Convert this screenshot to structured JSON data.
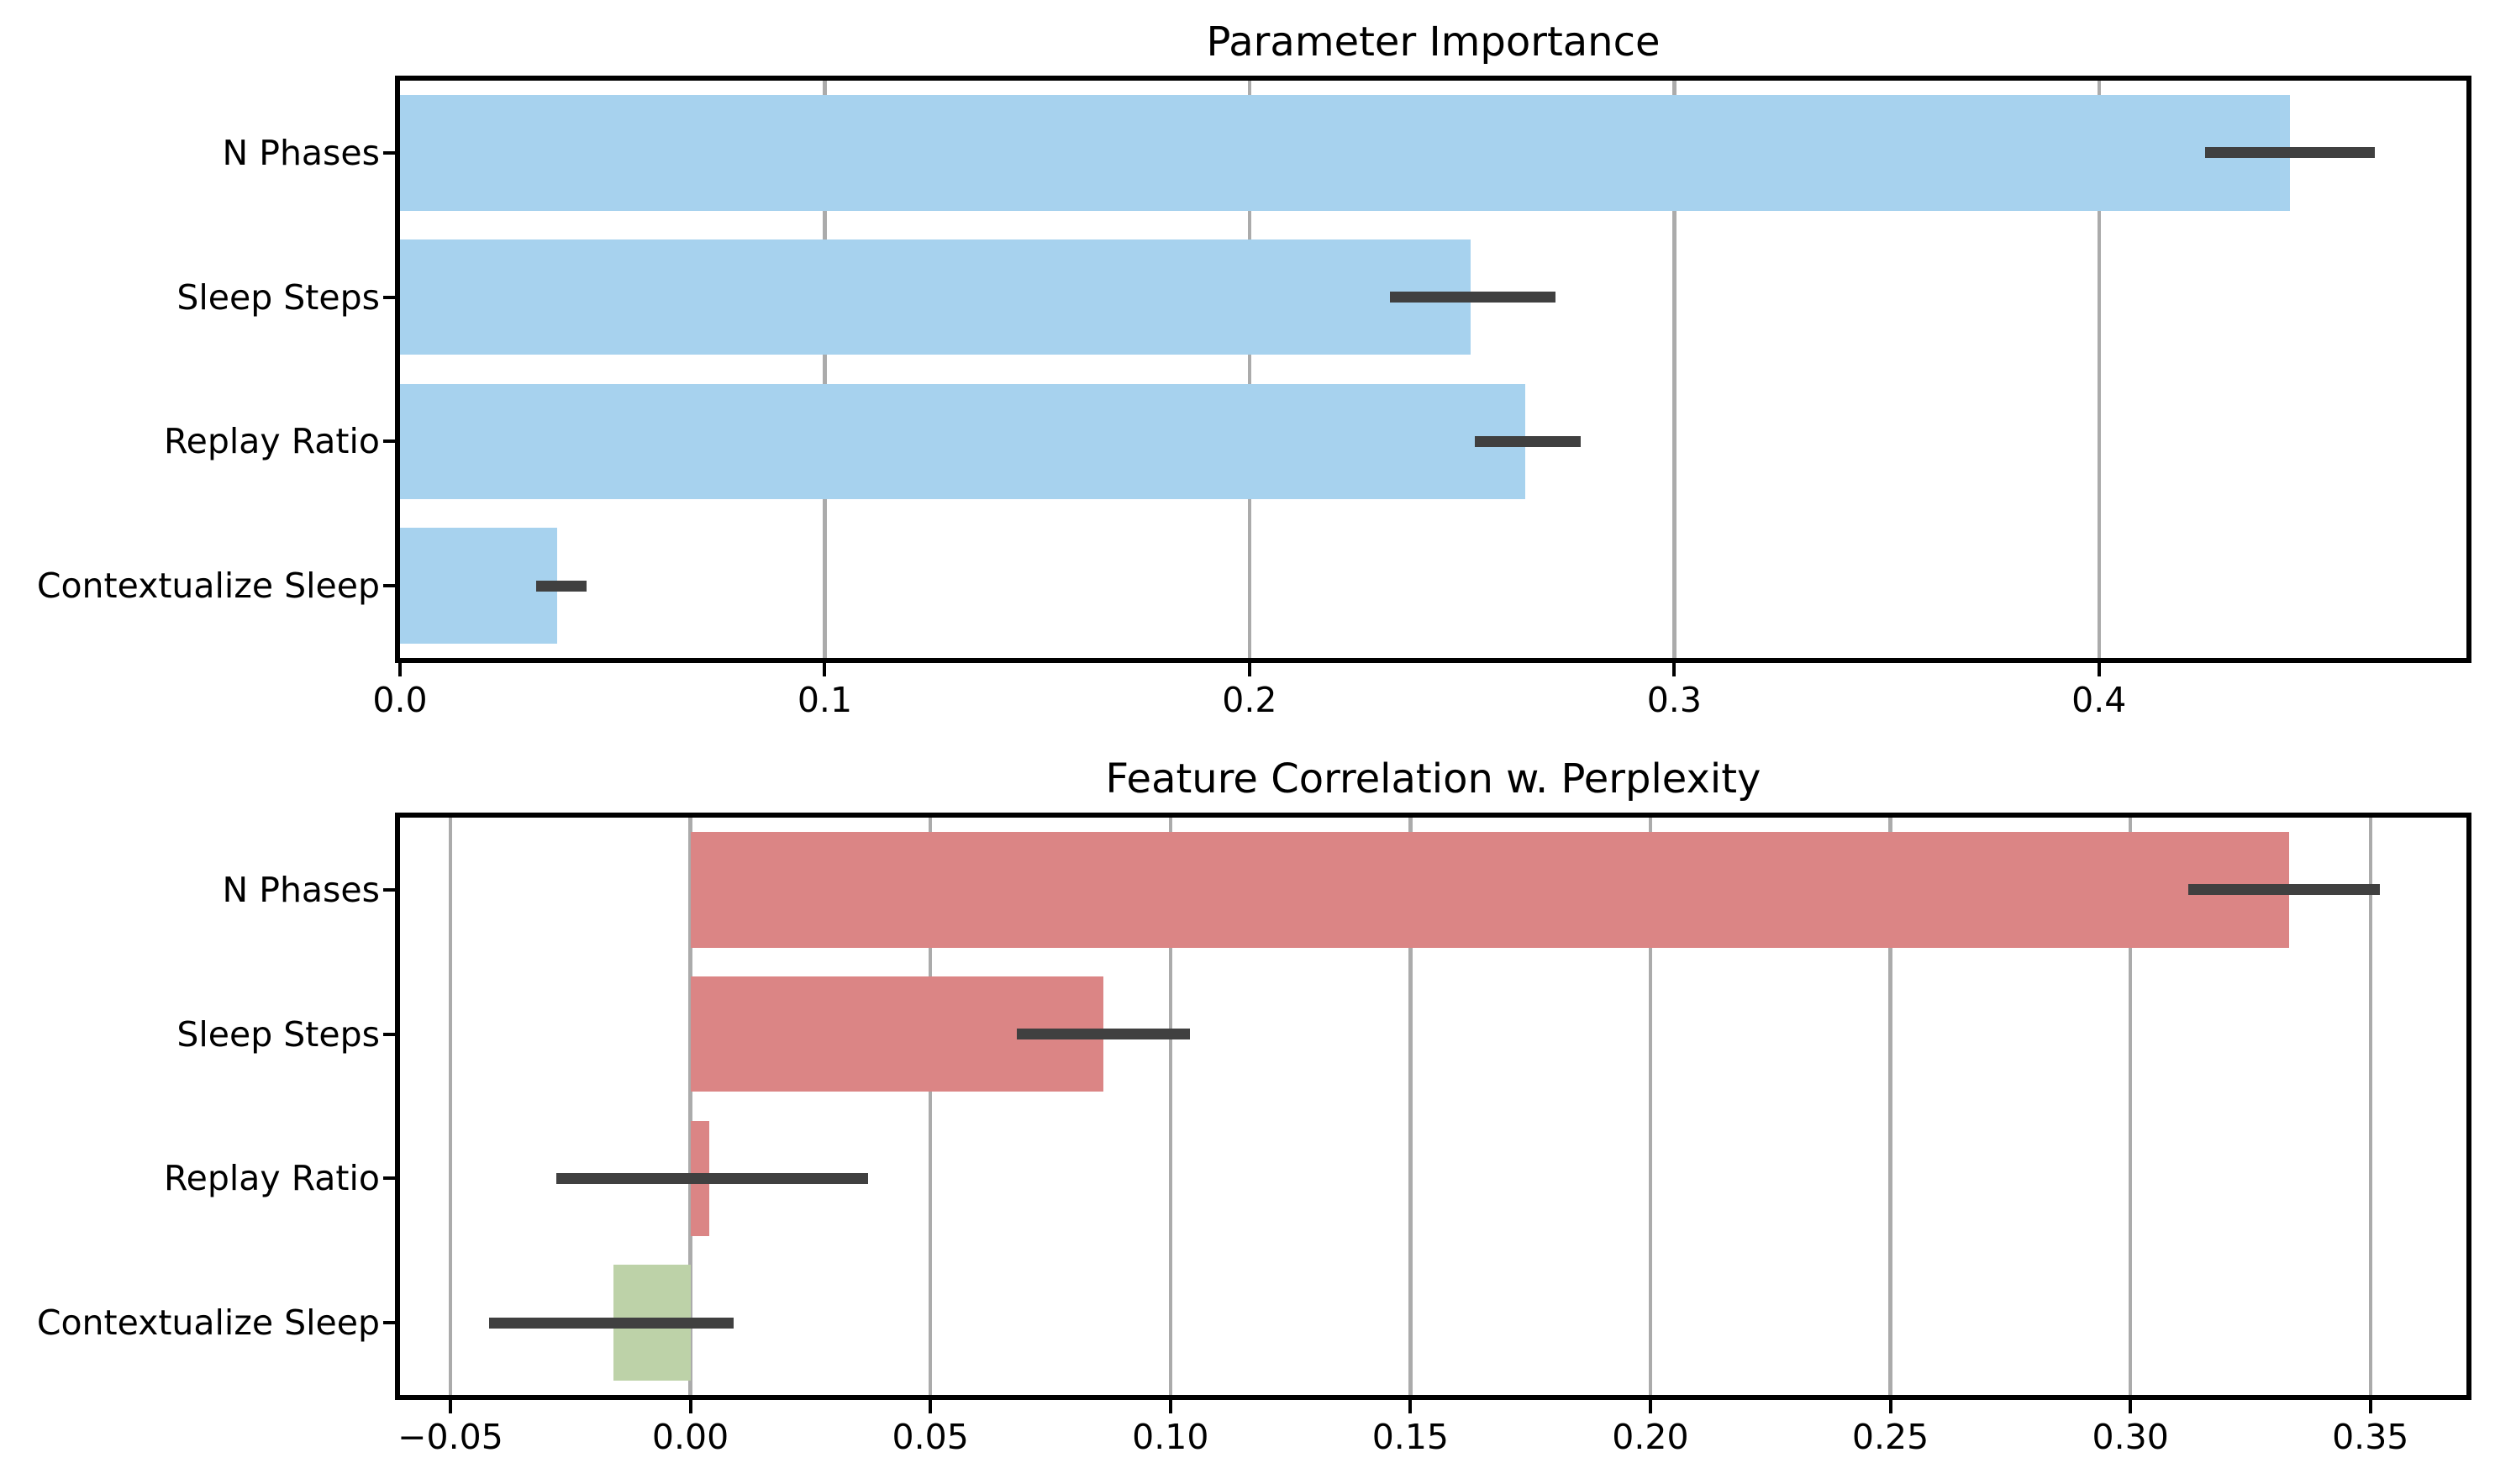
{
  "figure": {
    "background": "#ffffff",
    "spine_color": "#000000",
    "grid_color": "#ababab",
    "error_bar_color": "#404040",
    "text_color": "#000000"
  },
  "chart_data": [
    {
      "type": "bar",
      "orientation": "horizontal",
      "title": "Parameter Importance",
      "categories": [
        "N Phases",
        "Sleep Steps",
        "Replay Ratio",
        "Contextualize Sleep"
      ],
      "values": [
        0.445,
        0.252,
        0.265,
        0.037
      ],
      "error_low": [
        0.425,
        0.233,
        0.253,
        0.032
      ],
      "error_high": [
        0.465,
        0.272,
        0.278,
        0.044
      ],
      "bar_colors": [
        "#a7d2ee",
        "#a7d2ee",
        "#a7d2ee",
        "#a7d2ee"
      ],
      "xlim": [
        0,
        0.4865
      ],
      "xticks": [
        0,
        0.1,
        0.2,
        0.3,
        0.4
      ],
      "xtick_labels": [
        "0.0",
        "0.1",
        "0.2",
        "0.3",
        "0.4"
      ],
      "xlabel": "",
      "ylabel": "",
      "grid": "vertical",
      "legend": null
    },
    {
      "type": "bar",
      "orientation": "horizontal",
      "title": "Feature Correlation w. Perplexity",
      "categories": [
        "N Phases",
        "Sleep Steps",
        "Replay Ratio",
        "Contextualize Sleep"
      ],
      "values": [
        0.333,
        0.086,
        0.004,
        -0.016
      ],
      "error_low": [
        0.312,
        0.068,
        -0.028,
        -0.042
      ],
      "error_high": [
        0.352,
        0.104,
        0.037,
        0.009
      ],
      "bar_colors": [
        "#db8585",
        "#db8585",
        "#db8585",
        "#bdd2a8"
      ],
      "xlim": [
        -0.0605,
        0.37
      ],
      "xticks": [
        -0.05,
        0,
        0.05,
        0.1,
        0.15,
        0.2,
        0.25,
        0.3,
        0.35
      ],
      "xtick_labels": [
        "−0.05",
        "0.00",
        "0.05",
        "0.10",
        "0.15",
        "0.20",
        "0.25",
        "0.30",
        "0.35"
      ],
      "xlabel": "",
      "ylabel": "",
      "grid": "vertical",
      "legend": null
    }
  ]
}
